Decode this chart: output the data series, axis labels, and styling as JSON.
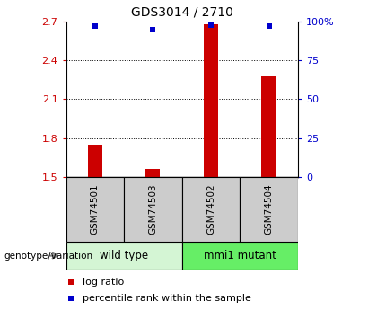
{
  "title": "GDS3014 / 2710",
  "samples": [
    "GSM74501",
    "GSM74503",
    "GSM74502",
    "GSM74504"
  ],
  "log_ratio": [
    1.75,
    1.56,
    2.68,
    2.28
  ],
  "percentile": [
    97,
    95,
    98,
    97
  ],
  "left_ylim": [
    1.5,
    2.7
  ],
  "right_ylim": [
    0,
    100
  ],
  "left_yticks": [
    1.5,
    1.8,
    2.1,
    2.4,
    2.7
  ],
  "right_yticks": [
    0,
    25,
    50,
    75,
    100
  ],
  "right_yticklabels": [
    "0",
    "25",
    "50",
    "75",
    "100%"
  ],
  "bar_color": "#cc0000",
  "dot_color": "#0000cc",
  "group_labels": [
    "wild type",
    "mmi1 mutant"
  ],
  "group_ranges": [
    [
      0,
      2
    ],
    [
      2,
      4
    ]
  ],
  "group_colors_light": [
    "#d4f5d4",
    "#66ee66"
  ],
  "sample_box_color": "#cccccc",
  "legend_red_label": "log ratio",
  "legend_blue_label": "percentile rank within the sample",
  "left_axis_color": "#cc0000",
  "right_axis_color": "#0000cc",
  "genotype_label": "genotype/variation"
}
